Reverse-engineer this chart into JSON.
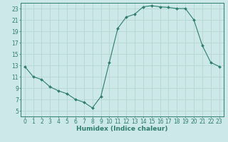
{
  "x": [
    0,
    1,
    2,
    3,
    4,
    5,
    6,
    7,
    8,
    9,
    10,
    11,
    12,
    13,
    14,
    15,
    16,
    17,
    18,
    19,
    20,
    21,
    22,
    23
  ],
  "y": [
    12.8,
    11.0,
    10.5,
    9.2,
    8.5,
    8.0,
    7.0,
    6.5,
    5.5,
    7.5,
    13.5,
    19.5,
    21.5,
    22.0,
    23.3,
    23.5,
    23.3,
    23.2,
    23.0,
    23.0,
    21.0,
    16.5,
    13.5,
    12.8
  ],
  "line_color": "#2e7d6e",
  "marker": "D",
  "marker_size": 2.0,
  "bg_color": "#cce8e8",
  "grid_color": "#b8d8d6",
  "xlabel": "Humidex (Indice chaleur)",
  "xlim": [
    -0.5,
    23.5
  ],
  "ylim": [
    4,
    24
  ],
  "xticks": [
    0,
    1,
    2,
    3,
    4,
    5,
    6,
    7,
    8,
    9,
    10,
    11,
    12,
    13,
    14,
    15,
    16,
    17,
    18,
    19,
    20,
    21,
    22,
    23
  ],
  "yticks": [
    5,
    7,
    9,
    11,
    13,
    15,
    17,
    19,
    21,
    23
  ],
  "tick_color": "#2e7d6e",
  "label_fontsize": 6.5,
  "tick_fontsize": 5.5
}
